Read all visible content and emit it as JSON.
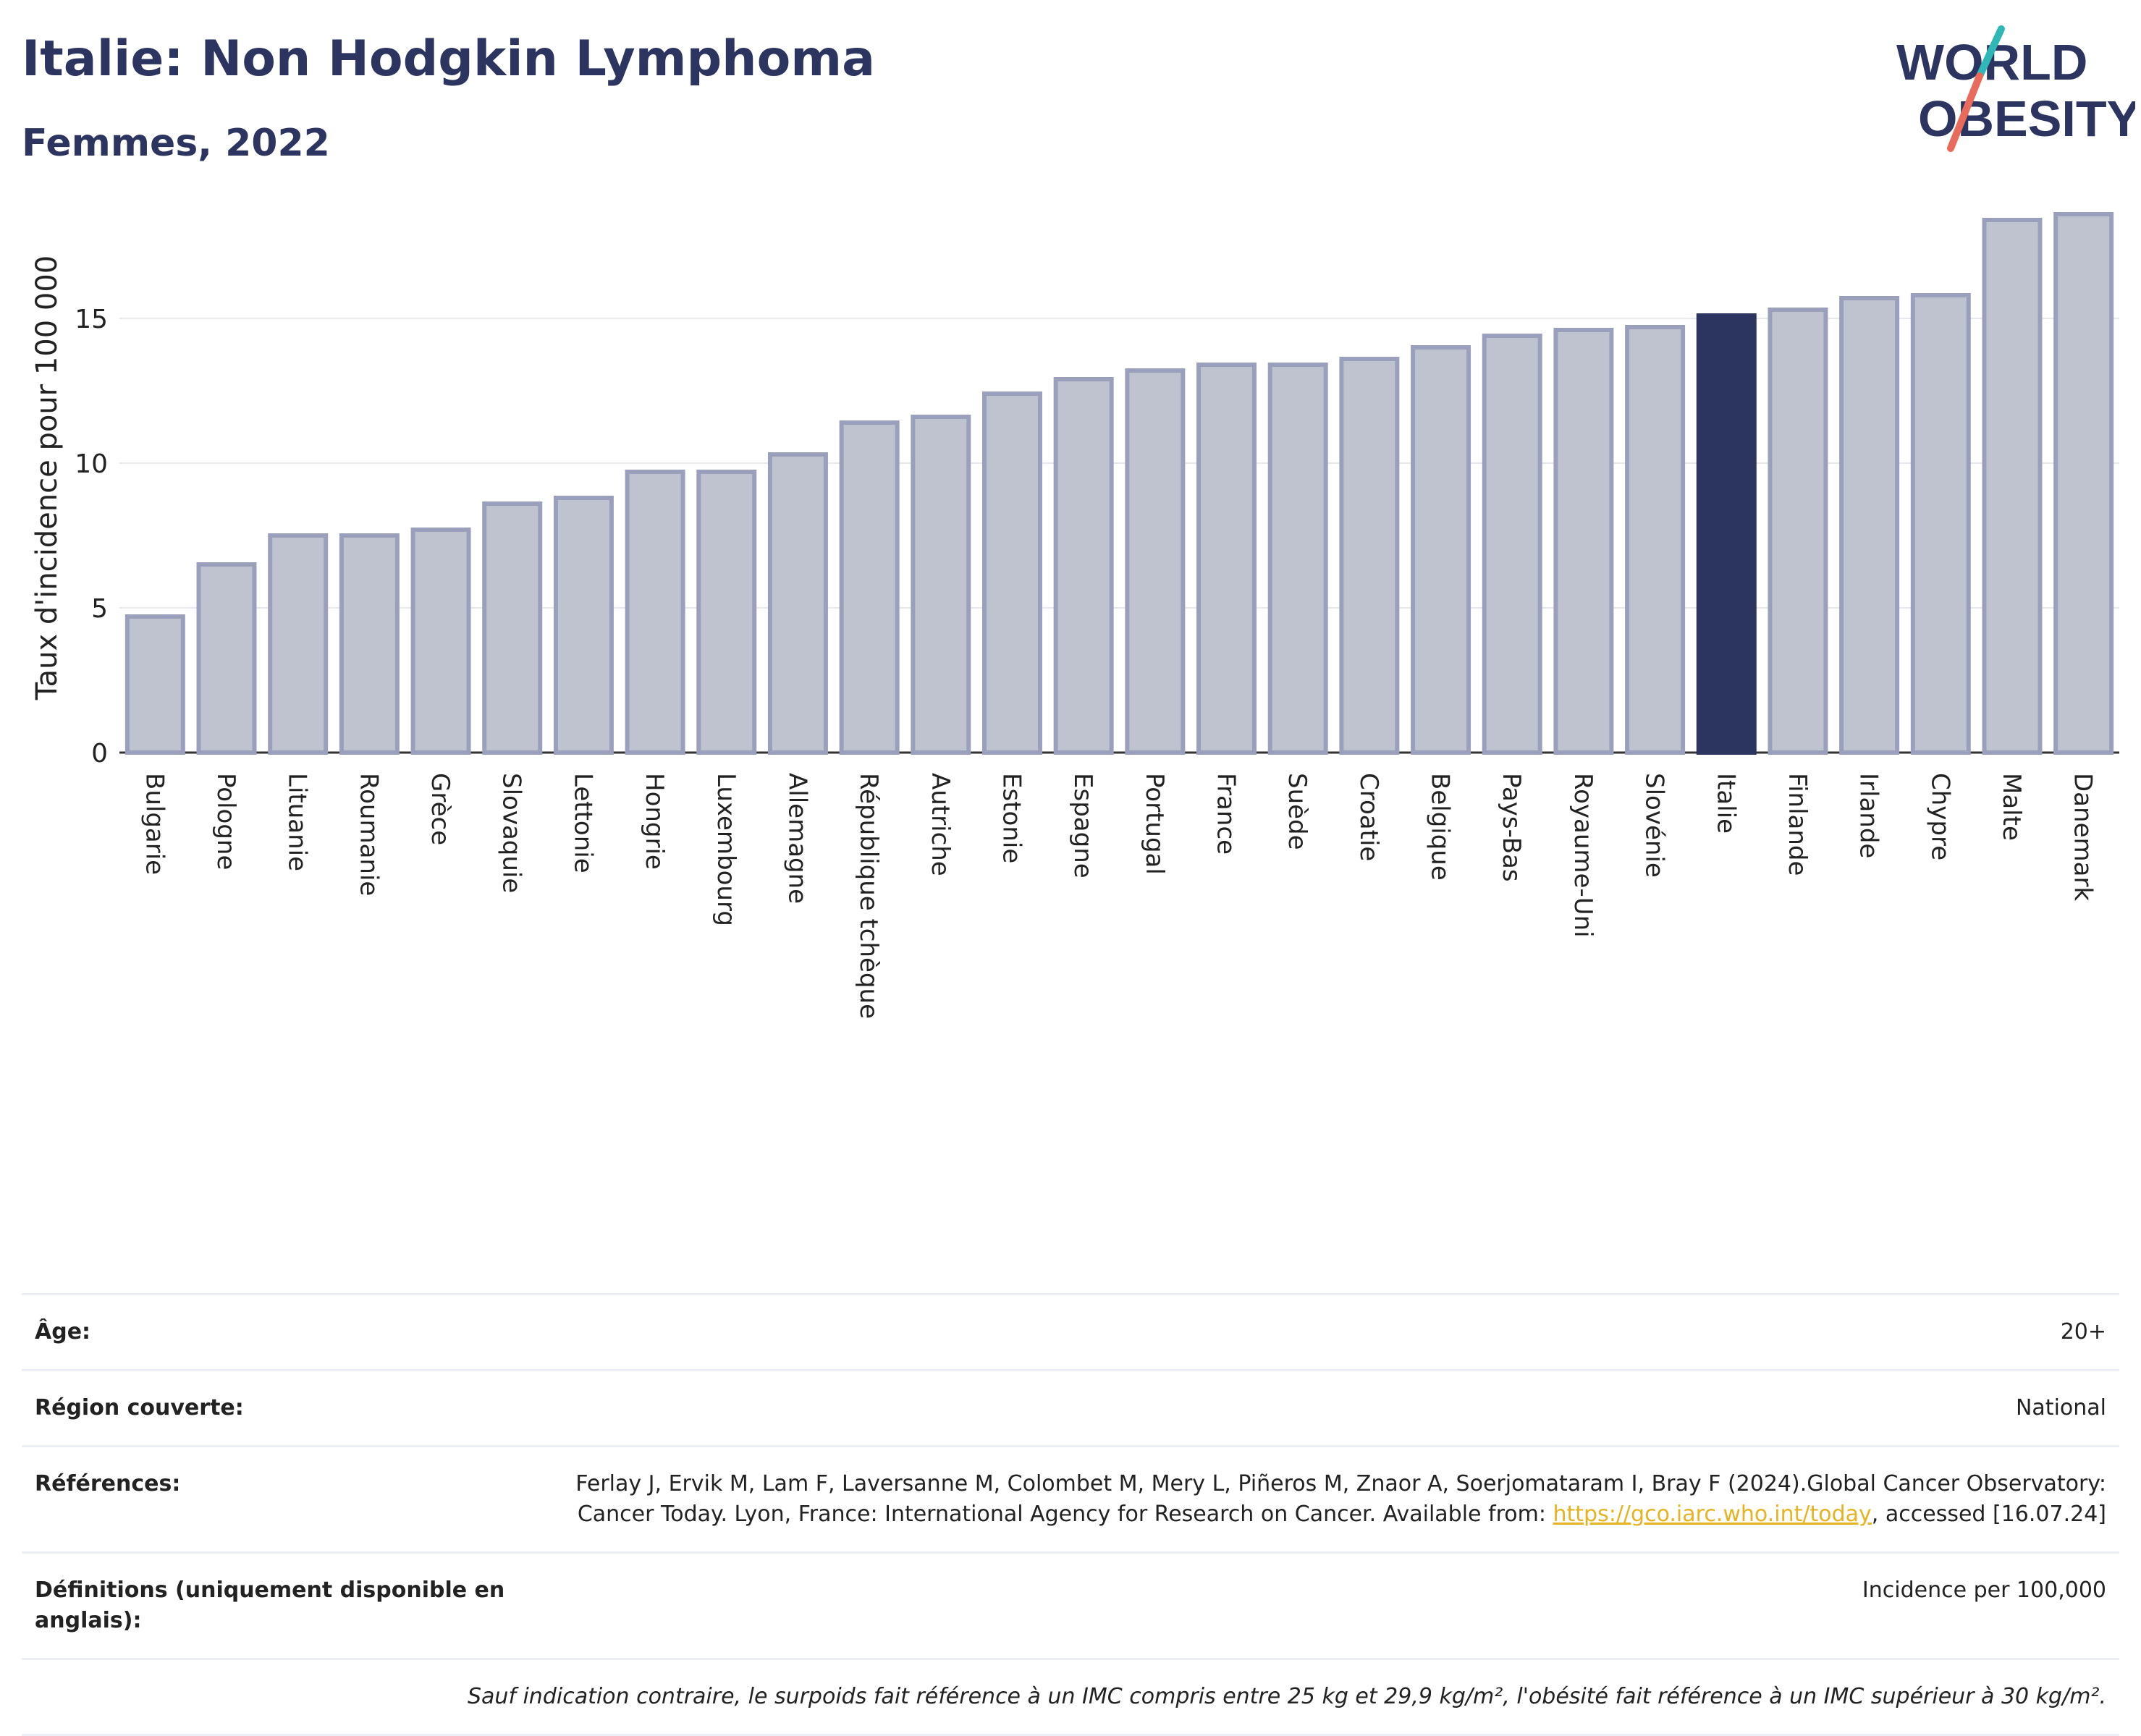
{
  "header": {
    "title": "Italie: Non Hodgkin Lymphoma",
    "subtitle": "Femmes, 2022"
  },
  "logo": {
    "line1": "WORLD",
    "line2": "OBESITY"
  },
  "colors": {
    "bar_default": "#bfc3d0",
    "bar_border": "#9aa0bb",
    "bar_highlight": "#2b3560",
    "grid": "#e6e8ef",
    "logo_text": "#2b3560",
    "logo_slash_teal": "#2fb7b5",
    "logo_slash_coral": "#e96b5c",
    "link": "#e8b321"
  },
  "chart_data": {
    "type": "bar",
    "title": "Italie: Non Hodgkin Lymphoma",
    "subtitle": "Femmes, 2022",
    "xlabel": "",
    "ylabel": "Taux d'incidence pour 100 000",
    "ylim": [
      0,
      19
    ],
    "yticks": [
      0,
      5,
      10,
      15
    ],
    "grid": true,
    "highlight": "Italie",
    "categories": [
      "Bulgarie",
      "Pologne",
      "Lituanie",
      "Roumanie",
      "Grèce",
      "Slovaquie",
      "Lettonie",
      "Hongrie",
      "Luxembourg",
      "Allemagne",
      "République tchèque",
      "Autriche",
      "Estonie",
      "Espagne",
      "Portugal",
      "France",
      "Suède",
      "Croatie",
      "Belgique",
      "Pays-Bas",
      "Royaume-Uni",
      "Slovénie",
      "Italie",
      "Finlande",
      "Irlande",
      "Chypre",
      "Malte",
      "Danemark"
    ],
    "values": [
      4.7,
      6.5,
      7.5,
      7.5,
      7.7,
      8.6,
      8.8,
      9.7,
      9.7,
      10.3,
      11.4,
      11.6,
      12.4,
      12.9,
      13.2,
      13.4,
      13.4,
      13.6,
      14.0,
      14.4,
      14.6,
      14.7,
      15.1,
      15.3,
      15.7,
      15.8,
      18.4,
      18.6
    ]
  },
  "meta": {
    "rows": [
      {
        "label": "Âge:",
        "value": "20+"
      },
      {
        "label": "Région couverte:",
        "value": "National"
      },
      {
        "label": "Références:",
        "value_pre": "Ferlay J, Ervik M, Lam F, Laversanne M, Colombet M, Mery L, Piñeros M, Znaor A, Soerjomataram I, Bray F (2024).Global Cancer Observatory: Cancer Today. Lyon, France: International Agency for Research on Cancer. Available from: ",
        "link": "https://gco.iarc.who.int/today",
        "value_post": ", accessed [16.07.24]"
      },
      {
        "label": "Définitions (uniquement disponible en anglais):",
        "value": "Incidence per 100,000"
      }
    ],
    "note": "Sauf indication contraire, le surpoids fait référence à un IMC compris entre 25 kg et 29,9 kg/m², l'obésité fait référence à un IMC supérieur à 30 kg/m²."
  }
}
